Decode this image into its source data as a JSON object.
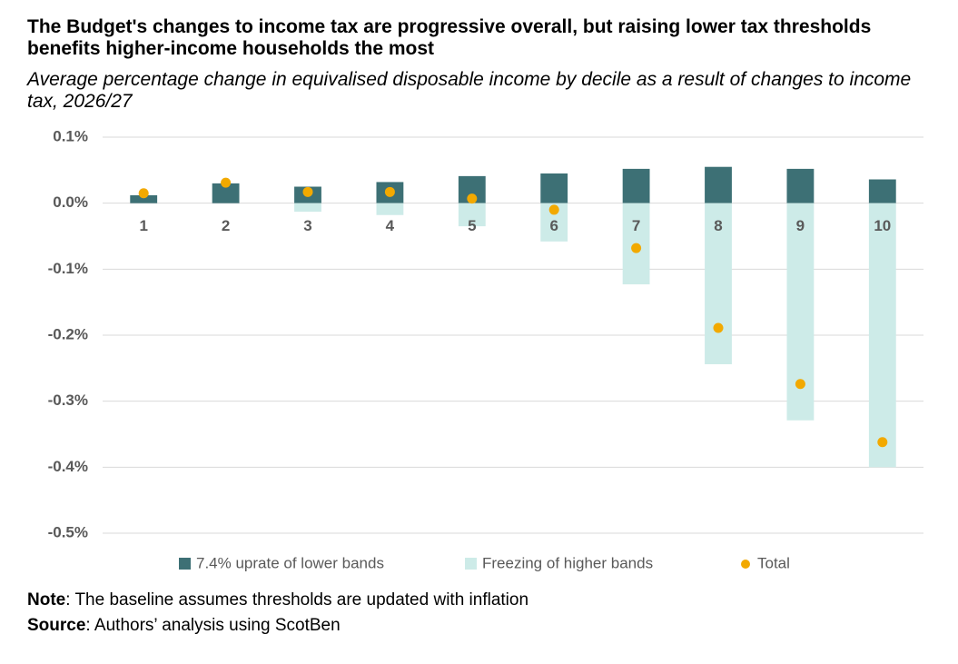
{
  "chart_data": {
    "type": "bar",
    "title": "The Budget's changes to income tax are progressive overall, but raising lower tax thresholds benefits higher-income households the most",
    "subtitle": "Average percentage change in equivalised disposable income by decile as a result of changes to income tax, 2026/27",
    "categories": [
      "1",
      "2",
      "3",
      "4",
      "5",
      "6",
      "7",
      "8",
      "9",
      "10"
    ],
    "series": [
      {
        "name": "7.4% uprate of lower bands",
        "type": "bar",
        "color": "#3d7075",
        "values": [
          0.012,
          0.03,
          0.025,
          0.032,
          0.041,
          0.045,
          0.052,
          0.055,
          0.052,
          0.036
        ]
      },
      {
        "name": "Freezing of higher bands",
        "type": "bar",
        "color": "#cdebe8",
        "values": [
          0,
          0,
          -0.013,
          -0.018,
          -0.035,
          -0.058,
          -0.123,
          -0.244,
          -0.329,
          -0.4
        ]
      },
      {
        "name": "Total",
        "type": "scatter",
        "color": "#f2a900",
        "values": [
          0.015,
          0.031,
          0.017,
          0.017,
          0.007,
          -0.01,
          -0.068,
          -0.189,
          -0.274,
          -0.362
        ]
      }
    ],
    "ylim": [
      -0.5,
      0.1
    ],
    "yticks": [
      {
        "value": 0.1,
        "label": "0.1%"
      },
      {
        "value": 0,
        "label": "0.0%"
      },
      {
        "value": -0.1,
        "label": "-0.1%"
      },
      {
        "value": -0.2,
        "label": "-0.2%"
      },
      {
        "value": -0.3,
        "label": "-0.3%"
      },
      {
        "value": -0.4,
        "label": "-0.4%"
      },
      {
        "value": -0.5,
        "label": "-0.5%"
      }
    ],
    "grid": true,
    "legend": "bottom"
  },
  "note": {
    "label": "Note",
    "text": ": The baseline assumes thresholds are updated with inflation"
  },
  "source": {
    "label": "Source",
    "text": ": Authors’ analysis using ScotBen"
  }
}
